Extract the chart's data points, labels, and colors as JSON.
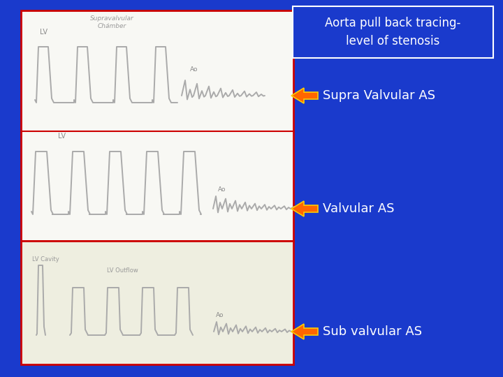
{
  "background_color": "#1a3acc",
  "title_box_text": "Aorta pull back tracing-\nlevel of stenosis",
  "title_box_bg": "#1a3acc",
  "title_box_border": "#ffffff",
  "title_text_color": "#ffffff",
  "title_fontsize": 12,
  "label1": "Supra Valvular AS",
  "label2": "Valvular AS",
  "label3": "Sub valvular AS",
  "label_fontsize": 13,
  "label_color": "#ffffff",
  "arrow_color_fill": "#ff6600",
  "arrow_color_edge": "#ffcc00",
  "panel_bg_top": "#f8f8f4",
  "panel_bg_bot": "#eeeee0",
  "panel_border_color": "#cc0000",
  "wave_color": "#aaaaaa",
  "wave_lw": 1.4,
  "fig_width": 7.2,
  "fig_height": 5.4,
  "dpi": 100
}
